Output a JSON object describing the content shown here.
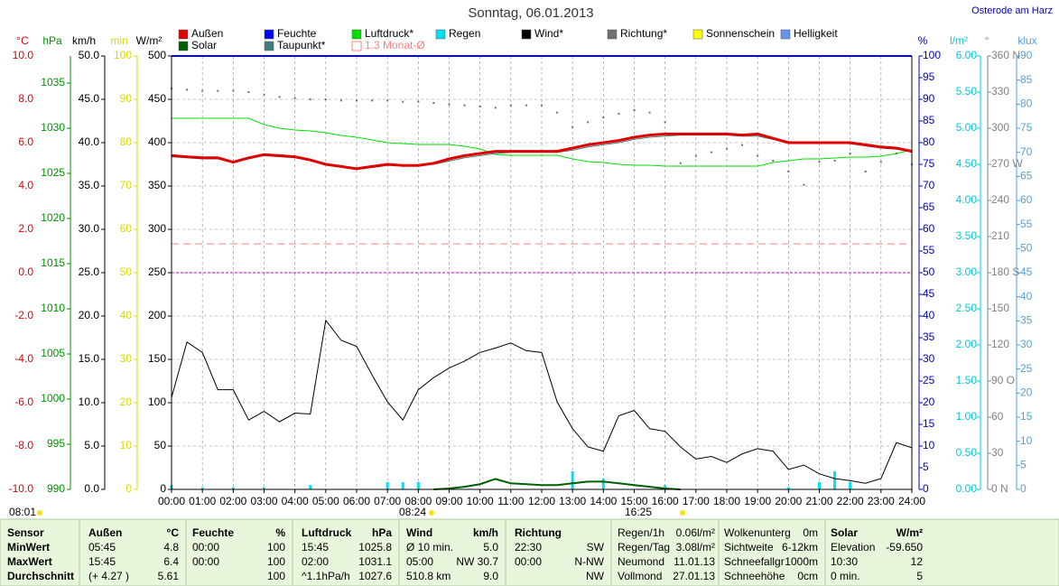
{
  "chart_data": {
    "type": "line",
    "title": "Sonntag, 06.01.2013",
    "location": "Osterode am Harz",
    "xlim": [
      0,
      24
    ],
    "xticks": [
      {
        "value": 0,
        "label": "00:00"
      },
      {
        "value": 1,
        "label": "01:00"
      },
      {
        "value": 2,
        "label": "02:00"
      },
      {
        "value": 3,
        "label": "03:00"
      },
      {
        "value": 4,
        "label": "04:00"
      },
      {
        "value": 5,
        "label": "05:00"
      },
      {
        "value": 6,
        "label": "06:00"
      },
      {
        "value": 7,
        "label": "07:00"
      },
      {
        "value": 8,
        "label": "08:00"
      },
      {
        "value": 9,
        "label": "09:00"
      },
      {
        "value": 10,
        "label": "10:00"
      },
      {
        "value": 11,
        "label": "11:00"
      },
      {
        "value": 12,
        "label": "12:00"
      },
      {
        "value": 13,
        "label": "13:00"
      },
      {
        "value": 14,
        "label": "14:00"
      },
      {
        "value": 15,
        "label": "15:00"
      },
      {
        "value": 16,
        "label": "16:00"
      },
      {
        "value": 17,
        "label": "17:00"
      },
      {
        "value": 18,
        "label": "18:00"
      },
      {
        "value": 19,
        "label": "19:00"
      },
      {
        "value": 20,
        "label": "20:00"
      },
      {
        "value": 21,
        "label": "21:00"
      },
      {
        "value": 22,
        "label": "22:00"
      },
      {
        "value": 23,
        "label": "23:00"
      },
      {
        "value": 24,
        "label": "24:00"
      }
    ],
    "grid": true,
    "axes": [
      {
        "label": "°C",
        "color": "#e00000",
        "lim": [
          -10,
          10
        ],
        "ticks": [
          {
            "value": -10,
            "label": "-10.0"
          },
          {
            "value": -8,
            "label": "-8.0"
          },
          {
            "value": -6,
            "label": "-6.0"
          },
          {
            "value": -4,
            "label": "-4.0"
          },
          {
            "value": -2,
            "label": "-2.0"
          },
          {
            "value": 0,
            "label": "0.0"
          },
          {
            "value": 2,
            "label": "2.0"
          },
          {
            "value": 4,
            "label": "4.0"
          },
          {
            "value": 6,
            "label": "6.0"
          },
          {
            "value": 8,
            "label": "8.0"
          },
          {
            "value": 10,
            "label": "10.0"
          }
        ]
      },
      {
        "label": "hPa",
        "color": "#009000",
        "lim": [
          990,
          1038
        ],
        "ticks": [
          990,
          995,
          1000,
          1005,
          1010,
          1015,
          1020,
          1025,
          1030,
          1035
        ]
      },
      {
        "label": "km/h",
        "color": "#000000",
        "lim": [
          0,
          50
        ],
        "ticks": [
          {
            "value": 0,
            "label": "0.0"
          },
          {
            "value": 5,
            "label": "5.0"
          },
          {
            "value": 10,
            "label": "10.0"
          },
          {
            "value": 15,
            "label": "15.0"
          },
          {
            "value": 20,
            "label": "20.0"
          },
          {
            "value": 25,
            "label": "25.0"
          },
          {
            "value": 30,
            "label": "30.0"
          },
          {
            "value": 35,
            "label": "35.0"
          },
          {
            "value": 40,
            "label": "40.0"
          },
          {
            "value": 45,
            "label": "45.0"
          },
          {
            "value": 50,
            "label": "50.0"
          }
        ]
      },
      {
        "label": "min",
        "color": "#d8d800",
        "lim": [
          0,
          100
        ],
        "ticks": [
          0,
          10,
          20,
          30,
          40,
          50,
          60,
          70,
          80,
          90,
          100
        ]
      },
      {
        "label": "W/m²",
        "color": "#000000",
        "lim": [
          0,
          500
        ],
        "ticks": [
          0,
          50,
          100,
          150,
          200,
          250,
          300,
          350,
          400,
          450,
          500
        ],
        "grid": true
      },
      {
        "label": "%",
        "color": "#0000c0",
        "lim": [
          0,
          100
        ],
        "ticks": [
          0,
          5,
          10,
          15,
          20,
          25,
          30,
          35,
          40,
          45,
          50,
          55,
          60,
          65,
          70,
          75,
          80,
          85,
          90,
          95,
          100
        ]
      },
      {
        "label": "l/m²",
        "color": "#00c8d8",
        "lim": [
          0,
          6
        ],
        "ticks": [
          {
            "value": 0,
            "label": "0.00"
          },
          {
            "value": 0.5,
            "label": "0.50"
          },
          {
            "value": 1,
            "label": "1.00"
          },
          {
            "value": 1.5,
            "label": "1.50"
          },
          {
            "value": 2,
            "label": "2.00"
          },
          {
            "value": 2.5,
            "label": "2.50"
          },
          {
            "value": 3,
            "label": "3.00"
          },
          {
            "value": 3.5,
            "label": "3.50"
          },
          {
            "value": 4,
            "label": "4.00"
          },
          {
            "value": 4.5,
            "label": "4.50"
          },
          {
            "value": 5,
            "label": "5.00"
          },
          {
            "value": 5.5,
            "label": "5.50"
          },
          {
            "value": 6,
            "label": "6.00"
          }
        ]
      },
      {
        "label": "°",
        "color": "#808080",
        "lim": [
          0,
          360
        ],
        "ticks": [
          {
            "value": 0,
            "label": "0 N"
          },
          30,
          60,
          {
            "value": 90,
            "label": "90 O"
          },
          120,
          150,
          {
            "value": 180,
            "label": "180 S"
          },
          210,
          240,
          {
            "value": 270,
            "label": "270 W"
          },
          300,
          330,
          {
            "value": 360,
            "label": "360 N"
          }
        ]
      },
      {
        "label": "klux",
        "color": "#50a0d8",
        "lim": [
          0,
          90
        ],
        "ticks": [
          0,
          5,
          10,
          15,
          20,
          25,
          30,
          35,
          40,
          45,
          50,
          55,
          60,
          65,
          70,
          75,
          80,
          85,
          90
        ]
      }
    ],
    "x": [
      0,
      0.5,
      1,
      1.5,
      2,
      2.5,
      3,
      3.5,
      4,
      4.5,
      5,
      5.5,
      6,
      6.5,
      7,
      7.5,
      8,
      8.5,
      9,
      9.5,
      10,
      10.5,
      11,
      11.5,
      12,
      12.5,
      13,
      13.5,
      14,
      14.5,
      15,
      15.5,
      16,
      16.5,
      17,
      17.5,
      18,
      18.5,
      19,
      19.5,
      20,
      20.5,
      21,
      21.5,
      22,
      22.5,
      23,
      23.5,
      24
    ],
    "series": [
      {
        "name": "Außen",
        "color": "#e00000",
        "axis": 0,
        "width": 3,
        "values": [
          5.4,
          5.35,
          5.3,
          5.3,
          5.1,
          5.3,
          5.45,
          5.4,
          5.35,
          5.2,
          5.0,
          4.9,
          4.8,
          4.9,
          5.0,
          4.95,
          4.95,
          5.05,
          5.25,
          5.4,
          5.5,
          5.6,
          5.6,
          5.6,
          5.6,
          5.6,
          5.75,
          5.9,
          6.0,
          6.1,
          6.25,
          6.35,
          6.4,
          6.4,
          6.4,
          6.4,
          6.4,
          6.35,
          6.4,
          6.2,
          6.0,
          6.0,
          6.0,
          6.0,
          6.0,
          5.9,
          5.8,
          5.75,
          5.6
        ]
      },
      {
        "name": "Feuchte",
        "color": "#0000ff",
        "axis": 5,
        "width": 2,
        "values": [
          100,
          100,
          100,
          100,
          100,
          100,
          100,
          100,
          100,
          100,
          100,
          100,
          100,
          100,
          100,
          100,
          100,
          100,
          100,
          100,
          100,
          100,
          100,
          100,
          100,
          100,
          100,
          100,
          100,
          100,
          100,
          100,
          100,
          100,
          100,
          100,
          100,
          100,
          100,
          100,
          100,
          100,
          100,
          100,
          100,
          100,
          100,
          100,
          100
        ]
      },
      {
        "name": "Luftdruck*",
        "color": "#00e000",
        "axis": 1,
        "width": 1,
        "values": [
          1031.1,
          1031.1,
          1031.1,
          1031.1,
          1031.1,
          1031.1,
          1030.4,
          1030.0,
          1029.8,
          1029.7,
          1029.5,
          1029.2,
          1029.0,
          1028.7,
          1028.4,
          1028.3,
          1028.2,
          1028.2,
          1028.2,
          1028.0,
          1027.7,
          1027.1,
          1027.0,
          1027.0,
          1027.0,
          1027.0,
          1026.6,
          1026.3,
          1026.2,
          1026.0,
          1025.9,
          1025.9,
          1025.8,
          1025.8,
          1025.8,
          1025.8,
          1025.8,
          1025.8,
          1025.8,
          1026.2,
          1026.4,
          1026.6,
          1026.6,
          1026.7,
          1026.8,
          1026.8,
          1026.9,
          1027.2,
          1027.6
        ]
      },
      {
        "name": "Regen",
        "color": "#00e0f0",
        "axis": 6,
        "style": "bars",
        "values": [
          0.06,
          null,
          0.03,
          null,
          0.03,
          null,
          0.03,
          null,
          null,
          0.06,
          null,
          null,
          null,
          null,
          0.1,
          0.1,
          0.1,
          null,
          null,
          null,
          null,
          null,
          null,
          null,
          null,
          null,
          0.25,
          null,
          0.15,
          null,
          null,
          null,
          0.06,
          null,
          null,
          null,
          null,
          null,
          null,
          null,
          0.03,
          null,
          0.1,
          0.25,
          0.1,
          null,
          null,
          null,
          null
        ]
      },
      {
        "name": "Wind*",
        "color": "#000000",
        "axis": 2,
        "width": 1,
        "values": [
          10.6,
          17.0,
          15.8,
          11.5,
          11.5,
          8.0,
          9.0,
          7.8,
          8.8,
          8.7,
          19.5,
          17.2,
          16.5,
          13.2,
          10.1,
          8.0,
          11.5,
          12.9,
          14.0,
          14.8,
          15.8,
          16.3,
          16.9,
          16.0,
          15.8,
          10.1,
          7.0,
          4.9,
          4.4,
          8.5,
          9.1,
          7.0,
          6.7,
          4.9,
          3.5,
          3.8,
          3.1,
          4.1,
          4.7,
          4.4,
          2.3,
          2.8,
          1.8,
          1.25,
          1.0,
          0.7,
          1.25,
          5.4,
          4.8
        ]
      },
      {
        "name": "Richtung*",
        "color": "#707070",
        "axis": 7,
        "style": "dots",
        "values": [
          333,
          332,
          331,
          331,
          331,
          330,
          328,
          326,
          325,
          324,
          324,
          323,
          323,
          323,
          323,
          322,
          322,
          321,
          320,
          319,
          318,
          317,
          319,
          319,
          319,
          313,
          301,
          305,
          309,
          312,
          315,
          313,
          305,
          271,
          277,
          280,
          283,
          286,
          277,
          273,
          264,
          253,
          272,
          273,
          279,
          264,
          272,
          279,
          270
        ]
      },
      {
        "name": "Solar",
        "color": "#006000",
        "axis": 4,
        "width": 2,
        "values": [
          null,
          null,
          null,
          null,
          null,
          null,
          null,
          null,
          null,
          null,
          null,
          null,
          null,
          null,
          null,
          null,
          null,
          0,
          1,
          3,
          6,
          12,
          7,
          6,
          5,
          5,
          7,
          9,
          9,
          7,
          5,
          3,
          1,
          0,
          null,
          null,
          null,
          null,
          null,
          null,
          null,
          null,
          null,
          null,
          null,
          null,
          null,
          null,
          null
        ]
      },
      {
        "name": "Taupunkt*",
        "color": "#408080",
        "axis": 0,
        "width": 1,
        "values": [
          5.35,
          5.3,
          5.25,
          5.25,
          5.1,
          5.25,
          5.4,
          5.35,
          5.3,
          5.2,
          5.0,
          4.9,
          4.8,
          4.85,
          4.95,
          4.95,
          4.95,
          5.0,
          5.15,
          5.3,
          5.4,
          5.5,
          5.55,
          5.55,
          5.55,
          5.55,
          5.65,
          5.8,
          5.9,
          6.0,
          6.15,
          6.25,
          6.3,
          6.35,
          6.35,
          6.35,
          6.35,
          6.3,
          6.3,
          6.15,
          6.05,
          6.0,
          6.0,
          6.0,
          5.95,
          5.85,
          5.75,
          5.7,
          5.6
        ]
      }
    ],
    "legend_only": [
      {
        "name": "Sonnenschein",
        "color": "#ffff00"
      },
      {
        "name": "Helligkeit",
        "color": "#6495ed"
      }
    ],
    "monthly_mean": {
      "label": "1.3 Monat-Ø",
      "value": 1.33,
      "color": "#ff8080",
      "axis": 0
    },
    "zero_line": {
      "value": 0,
      "color": "#c000c0",
      "axis": 0
    },
    "annotations": [
      "08:01",
      "08:24",
      "16:25"
    ]
  },
  "table": {
    "rows": [
      [
        "Sensor",
        "Außen",
        "°C",
        "Feuchte",
        "%",
        "Luftdruck",
        "hPa",
        "Wind",
        "km/h",
        "Richtung",
        null,
        "Regen/1h",
        "0.06l/m²",
        "Wolkenunterg",
        "0m",
        "Solar",
        "W/m²"
      ],
      [
        "MinWert",
        "05:45",
        "4.8",
        "00:00",
        "100",
        "15:45",
        "1025.8",
        "Ø 10 min.",
        "5.0",
        "22:30",
        "SW",
        "Regen/Tag",
        "3.08l/m²",
        "Sichtweite",
        "6-12km",
        "Elevation",
        "-59.650"
      ],
      [
        "MaxWert",
        "15:45",
        "6.4",
        "00:00",
        "100",
        "02:00",
        "1031.1",
        "05:00",
        "NW 30.7",
        "00:00",
        "N-NW",
        "Neumond",
        "11.01.13",
        "Schneefallgr",
        "1000m",
        "10:30",
        "12"
      ],
      [
        "Durchschnitt",
        "(+ 4.27 )",
        "5.61",
        null,
        "100",
        "^1.1hPa/h",
        "1027.6",
        "510.8 km",
        "9.0",
        null,
        "NW",
        "Vollmond",
        "27.01.13",
        "Schneehöhe",
        "0cm",
        "0 min.",
        "5"
      ]
    ]
  }
}
